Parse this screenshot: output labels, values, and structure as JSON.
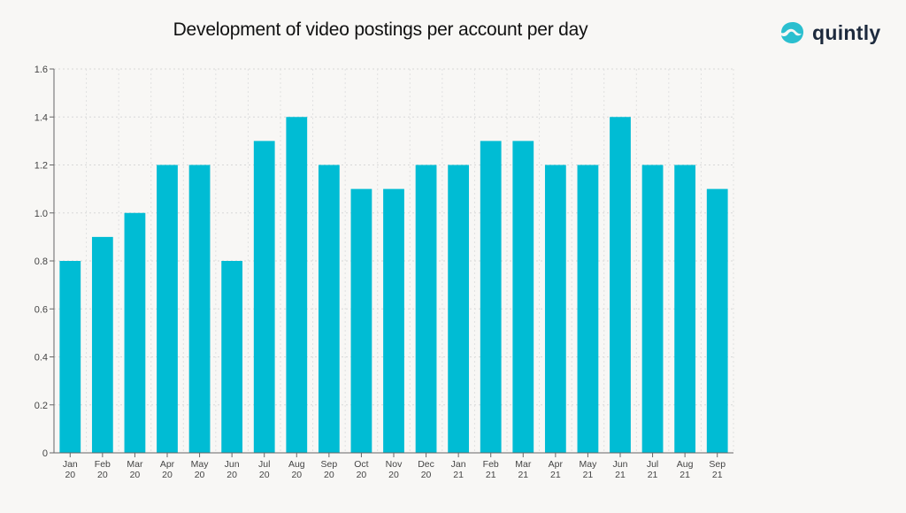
{
  "title": "Development of video postings per account per day",
  "brand": {
    "name": "quintly",
    "logo_icon": "quintly-wave-logo-icon",
    "accent": "#2bbfcf"
  },
  "chart_data": {
    "type": "bar",
    "title": "Development of video postings per account per day",
    "xlabel": "",
    "ylabel": "",
    "categories": [
      [
        "Jan",
        "20"
      ],
      [
        "Feb",
        "20"
      ],
      [
        "Mar",
        "20"
      ],
      [
        "Apr",
        "20"
      ],
      [
        "May",
        "20"
      ],
      [
        "Jun",
        "20"
      ],
      [
        "Jul",
        "20"
      ],
      [
        "Aug",
        "20"
      ],
      [
        "Sep",
        "20"
      ],
      [
        "Oct",
        "20"
      ],
      [
        "Nov",
        "20"
      ],
      [
        "Dec",
        "20"
      ],
      [
        "Jan",
        "21"
      ],
      [
        "Feb",
        "21"
      ],
      [
        "Mar",
        "21"
      ],
      [
        "Apr",
        "21"
      ],
      [
        "May",
        "21"
      ],
      [
        "Jun",
        "21"
      ],
      [
        "Jul",
        "21"
      ],
      [
        "Aug",
        "21"
      ],
      [
        "Sep",
        "21"
      ]
    ],
    "values": [
      0.8,
      0.9,
      1.0,
      1.2,
      1.2,
      0.8,
      1.3,
      1.4,
      1.2,
      1.1,
      1.1,
      1.2,
      1.2,
      1.3,
      1.3,
      1.2,
      1.2,
      1.4,
      1.2,
      1.2,
      1.1
    ],
    "ylim": [
      0,
      1.6
    ],
    "yticks": [
      "0",
      "0.2",
      "0.4",
      "0.6",
      "0.8",
      "1.0",
      "1.2",
      "1.4",
      "1.6"
    ],
    "bar_color": "#00bcd4",
    "grid": true,
    "legend": "none"
  }
}
